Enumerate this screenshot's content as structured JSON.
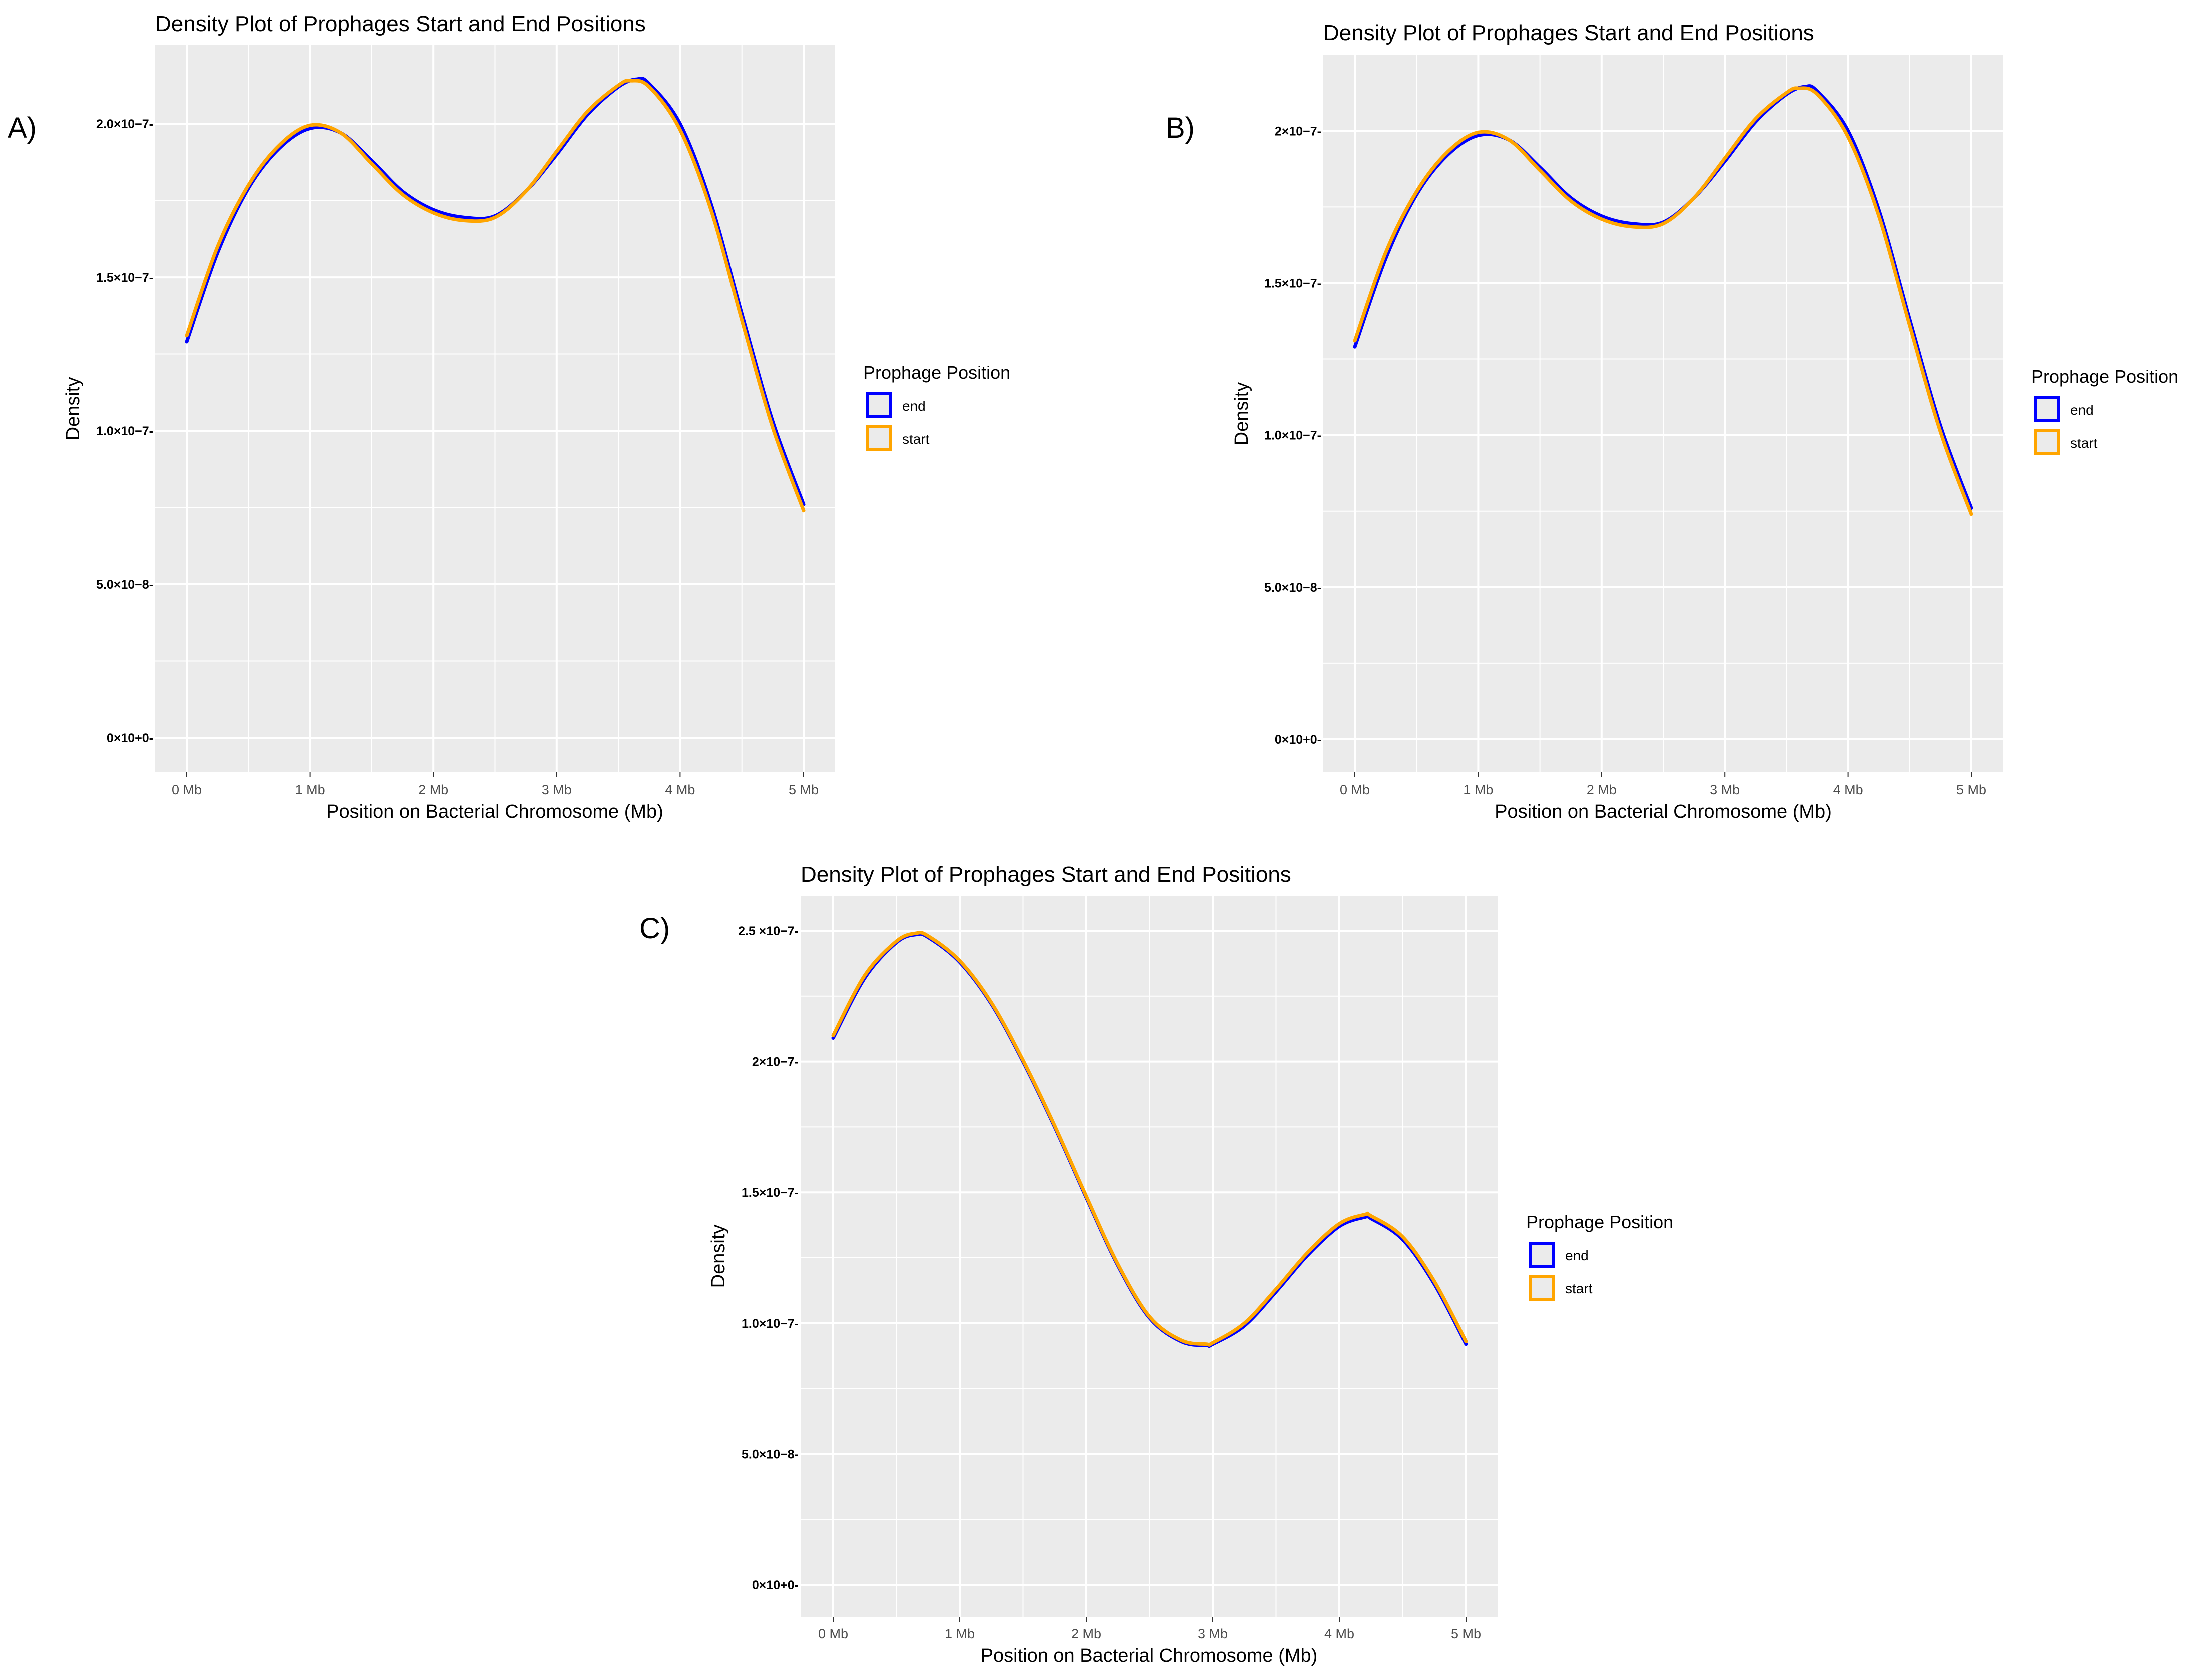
{
  "chart_data": [
    {
      "panel_label": "A)",
      "type": "line",
      "title": "Density Plot of Prophages Start and End Positions",
      "xlabel": "Position on Bacterial Chromosome (Mb)",
      "ylabel": "Density",
      "xlim": [
        0,
        5
      ],
      "ylim": [
        0,
        2.15e-07
      ],
      "x_ticks": [
        0,
        1,
        2,
        3,
        4,
        5
      ],
      "x_tick_labels": [
        "0 Mb",
        "1 Mb",
        "2 Mb",
        "3 Mb",
        "4 Mb",
        "5 Mb"
      ],
      "y_ticks": [
        0,
        5e-08,
        1e-07,
        1.5e-07,
        2e-07
      ],
      "y_tick_labels": [
        "0×10+0-",
        "5.0×10−8-",
        "1.0×10−7-",
        "1.5×10−7-",
        "2.0×10−7-"
      ],
      "legend_title": "Prophage Position",
      "series": [
        {
          "name": "end",
          "color": "#0000ff",
          "x": [
            0,
            0.25,
            0.5,
            0.75,
            1.0,
            1.25,
            1.5,
            1.75,
            2.0,
            2.25,
            2.5,
            2.75,
            3.0,
            3.25,
            3.5,
            3.65,
            3.75,
            4.0,
            4.25,
            4.5,
            4.75,
            5.0
          ],
          "y": [
            1.29e-07,
            1.58e-07,
            1.79e-07,
            1.92e-07,
            1.985e-07,
            1.97e-07,
            1.88e-07,
            1.78e-07,
            1.72e-07,
            1.695e-07,
            1.7e-07,
            1.78e-07,
            1.9e-07,
            2.03e-07,
            2.12e-07,
            2.145e-07,
            2.13e-07,
            2e-07,
            1.74e-07,
            1.38e-07,
            1.03e-07,
            7.6e-08
          ]
        },
        {
          "name": "start",
          "color": "#ffa500",
          "x": [
            0,
            0.25,
            0.5,
            0.75,
            1.0,
            1.25,
            1.5,
            1.75,
            2.0,
            2.25,
            2.5,
            2.75,
            3.0,
            3.25,
            3.5,
            3.6,
            3.75,
            4.0,
            4.25,
            4.5,
            4.75,
            5.0
          ],
          "y": [
            1.31e-07,
            1.6e-07,
            1.8e-07,
            1.93e-07,
            1.995e-07,
            1.97e-07,
            1.87e-07,
            1.77e-07,
            1.71e-07,
            1.685e-07,
            1.695e-07,
            1.78e-07,
            1.91e-07,
            2.04e-07,
            2.125e-07,
            2.14e-07,
            2.12e-07,
            1.98e-07,
            1.72e-07,
            1.36e-07,
            1.01e-07,
            7.4e-08
          ]
        }
      ]
    },
    {
      "panel_label": "B)",
      "type": "line",
      "title": "Density Plot of Prophages Start and End Positions",
      "xlabel": "Position on Bacterial Chromosome (Mb)",
      "ylabel": "Density",
      "xlim": [
        0,
        5
      ],
      "ylim": [
        0,
        2.15e-07
      ],
      "x_ticks": [
        0,
        1,
        2,
        3,
        4,
        5
      ],
      "x_tick_labels": [
        "0 Mb",
        "1 Mb",
        "2 Mb",
        "3 Mb",
        "4 Mb",
        "5 Mb"
      ],
      "y_ticks": [
        0,
        5e-08,
        1e-07,
        1.5e-07,
        2e-07
      ],
      "y_tick_labels": [
        "0×10+0-",
        "5.0×10−8-",
        "1.0×10−7-",
        "1.5×10−7-",
        "2×10−7-"
      ],
      "legend_title": "Prophage Position",
      "series": [
        {
          "name": "end",
          "color": "#0000ff",
          "x": [
            0,
            0.25,
            0.5,
            0.75,
            1.0,
            1.25,
            1.5,
            1.75,
            2.0,
            2.25,
            2.5,
            2.75,
            3.0,
            3.25,
            3.5,
            3.65,
            3.75,
            4.0,
            4.25,
            4.5,
            4.75,
            5.0
          ],
          "y": [
            1.29e-07,
            1.58e-07,
            1.79e-07,
            1.92e-07,
            1.985e-07,
            1.97e-07,
            1.88e-07,
            1.78e-07,
            1.72e-07,
            1.695e-07,
            1.7e-07,
            1.78e-07,
            1.9e-07,
            2.03e-07,
            2.12e-07,
            2.145e-07,
            2.13e-07,
            2e-07,
            1.74e-07,
            1.38e-07,
            1.03e-07,
            7.6e-08
          ]
        },
        {
          "name": "start",
          "color": "#ffa500",
          "x": [
            0,
            0.25,
            0.5,
            0.75,
            1.0,
            1.25,
            1.5,
            1.75,
            2.0,
            2.25,
            2.5,
            2.75,
            3.0,
            3.25,
            3.5,
            3.6,
            3.75,
            4.0,
            4.25,
            4.5,
            4.75,
            5.0
          ],
          "y": [
            1.31e-07,
            1.6e-07,
            1.8e-07,
            1.93e-07,
            1.995e-07,
            1.97e-07,
            1.87e-07,
            1.77e-07,
            1.71e-07,
            1.685e-07,
            1.695e-07,
            1.78e-07,
            1.91e-07,
            2.04e-07,
            2.125e-07,
            2.14e-07,
            2.12e-07,
            1.98e-07,
            1.72e-07,
            1.36e-07,
            1.01e-07,
            7.4e-08
          ]
        }
      ]
    },
    {
      "panel_label": "C)",
      "type": "line",
      "title": "Density Plot of Prophages Start and End Positions",
      "xlabel": "Position on Bacterial Chromosome (Mb)",
      "ylabel": "Density",
      "xlim": [
        0,
        5
      ],
      "ylim": [
        0,
        2.5e-07
      ],
      "x_ticks": [
        0,
        1,
        2,
        3,
        4,
        5
      ],
      "x_tick_labels": [
        "0 Mb",
        "1 Mb",
        "2 Mb",
        "3 Mb",
        "4 Mb",
        "5 Mb"
      ],
      "y_ticks": [
        0,
        5e-08,
        1e-07,
        1.5e-07,
        2e-07,
        2.5e-07
      ],
      "y_tick_labels": [
        "0×10+0-",
        "5.0×10−8-",
        "1.0×10−7-",
        "1.5×10−7-",
        "2×10−7-",
        "2.5 ×10−7-"
      ],
      "legend_title": "Prophage Position",
      "series": [
        {
          "name": "end",
          "color": "#0000ff",
          "x": [
            0,
            0.25,
            0.5,
            0.65,
            0.75,
            1.0,
            1.25,
            1.5,
            1.75,
            2.0,
            2.25,
            2.5,
            2.75,
            2.95,
            3.0,
            3.25,
            3.5,
            3.75,
            4.0,
            4.2,
            4.25,
            4.5,
            4.75,
            5.0
          ],
          "y": [
            2.09e-07,
            2.32e-07,
            2.455e-07,
            2.485e-07,
            2.475e-07,
            2.38e-07,
            2.22e-07,
            2e-07,
            1.75e-07,
            1.48e-07,
            1.22e-07,
            1.02e-07,
            9.3e-08,
            9.15e-08,
            9.2e-08,
            9.9e-08,
            1.12e-07,
            1.26e-07,
            1.37e-07,
            1.405e-07,
            1.4e-07,
            1.32e-07,
            1.15e-07,
            9.2e-08
          ]
        },
        {
          "name": "start",
          "color": "#ffa500",
          "x": [
            0,
            0.25,
            0.5,
            0.65,
            0.75,
            1.0,
            1.25,
            1.5,
            1.75,
            2.0,
            2.25,
            2.5,
            2.75,
            2.95,
            3.0,
            3.25,
            3.5,
            3.75,
            4.0,
            4.2,
            4.25,
            4.5,
            4.75,
            5.0
          ],
          "y": [
            2.1e-07,
            2.33e-07,
            2.46e-07,
            2.49e-07,
            2.48e-07,
            2.385e-07,
            2.225e-07,
            2.005e-07,
            1.755e-07,
            1.485e-07,
            1.225e-07,
            1.025e-07,
            9.35e-08,
            9.2e-08,
            9.25e-08,
            1e-07,
            1.13e-07,
            1.27e-07,
            1.38e-07,
            1.415e-07,
            1.41e-07,
            1.33e-07,
            1.16e-07,
            9.3e-08
          ]
        }
      ]
    }
  ]
}
